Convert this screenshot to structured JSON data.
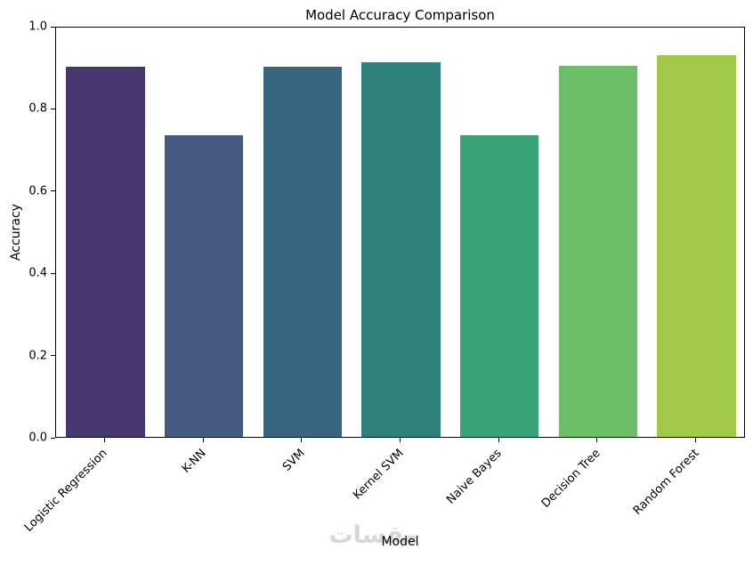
{
  "figure": {
    "title": "Model Accuracy Comparison",
    "xlabel": "Model",
    "ylabel": "Accuracy",
    "watermark_text": "مقسات"
  },
  "chart_data": {
    "type": "bar",
    "title": "Model Accuracy Comparison",
    "xlabel": "Model",
    "ylabel": "Accuracy",
    "categories": [
      "Logistic Regression",
      "K-NN",
      "SVM",
      "Kernel SVM",
      "Naive Bayes",
      "Decision Tree",
      "Random Forest"
    ],
    "values": [
      0.9,
      0.733,
      0.9,
      0.911,
      0.733,
      0.902,
      0.929
    ],
    "bar_colors": [
      "#473771",
      "#455a81",
      "#38687f",
      "#2e827b",
      "#3aa378",
      "#6cbe67",
      "#a3c948"
    ],
    "ylim": [
      0.0,
      1.0
    ],
    "yticks": [
      0.0,
      0.2,
      0.4,
      0.6,
      0.8,
      1.0
    ],
    "ytick_labels": [
      "0.0",
      "0.2",
      "0.4",
      "0.6",
      "0.8",
      "1.0"
    ],
    "grid": false,
    "legend": "none",
    "x_tick_rotation_deg": 45,
    "palette": "viridis (muted)"
  }
}
